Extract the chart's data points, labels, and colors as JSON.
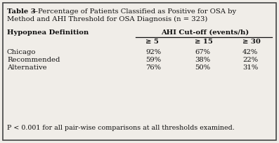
{
  "title_bold": "Table 3",
  "title_dash": "—",
  "title_rest": "Percentage of Patients Classified as Positive for OSA by",
  "title_line2": "Method and AHI Threshold for OSA Diagnosis (n = 323)",
  "col_header_left": "Hypopnea Definition",
  "col_header_right": "AHI Cut-off (events/h)",
  "subheaders": [
    "≥ 5",
    "≥ 15",
    "≥ 30"
  ],
  "rows": [
    [
      "Chicago",
      "92%",
      "67%",
      "42%"
    ],
    [
      "Recommended",
      "59%",
      "38%",
      "22%"
    ],
    [
      "Alternative",
      "76%",
      "50%",
      "31%"
    ]
  ],
  "footnote": "P < 0.001 for all pair-wise comparisons at all thresholds examined.",
  "bg_color": "#f0ede8",
  "border_color": "#444444",
  "text_color": "#111111",
  "font_family": "serif",
  "fontsize": 7.2,
  "small_fontsize": 6.8
}
